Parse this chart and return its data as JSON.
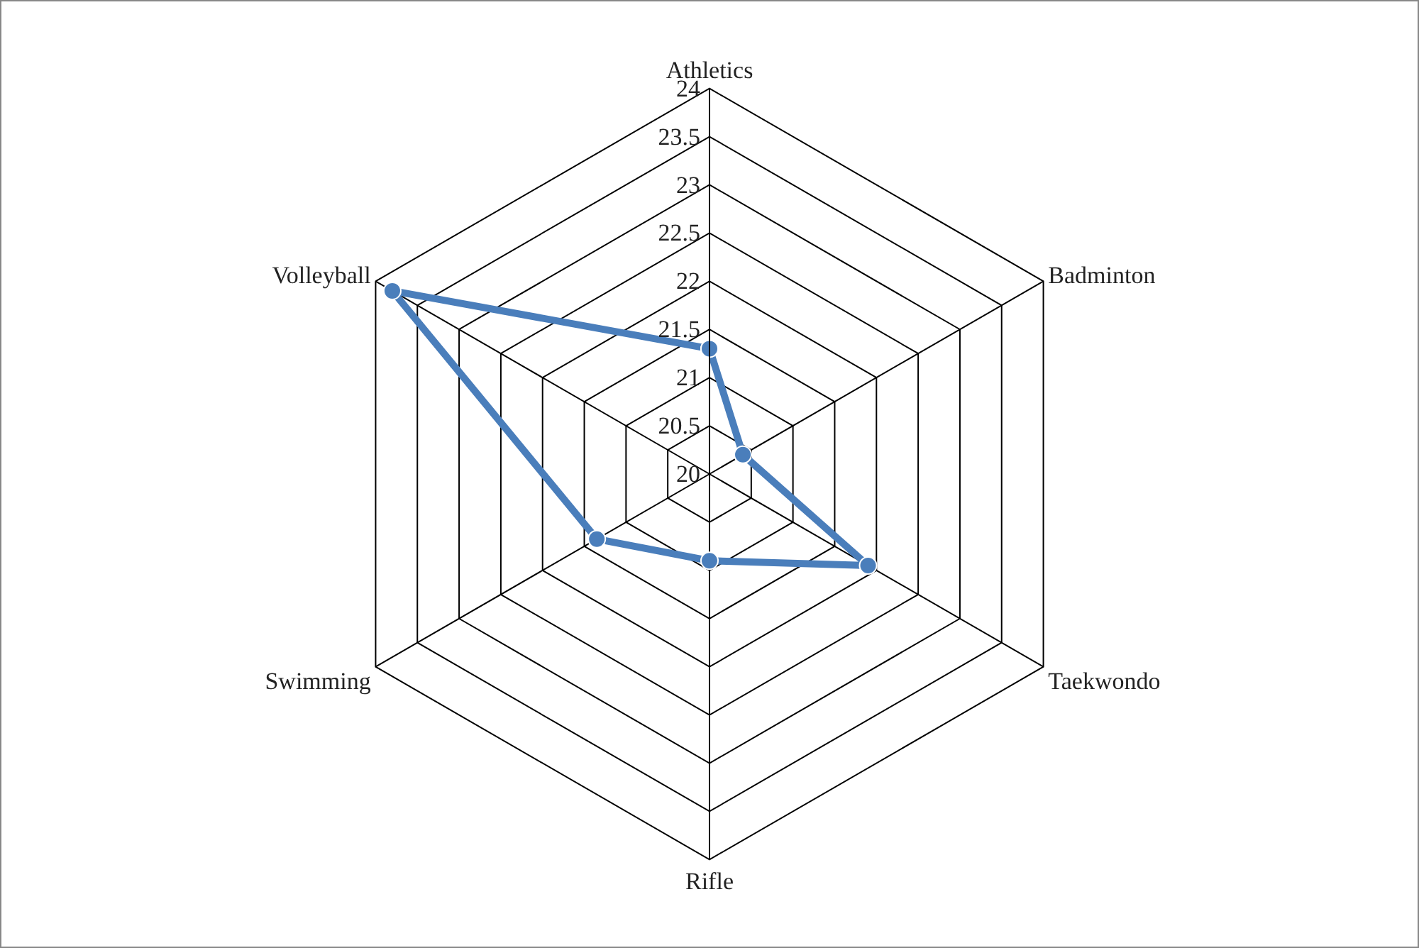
{
  "chart_data": {
    "type": "radar",
    "categories": [
      "Athletics",
      "Badminton",
      "Taekwondo",
      "Rifle",
      "Swimming",
      "Volleyball"
    ],
    "series": [
      {
        "color": "#4a7ebb",
        "values": [
          21.3,
          20.4,
          21.9,
          20.9,
          21.35,
          23.8
        ]
      }
    ],
    "ylim": [
      20,
      24
    ],
    "yticks": [
      20,
      20.5,
      21,
      21.5,
      22,
      22.5,
      23,
      23.5,
      24
    ],
    "grid": true,
    "marker": "circle",
    "line_style": "solid"
  }
}
